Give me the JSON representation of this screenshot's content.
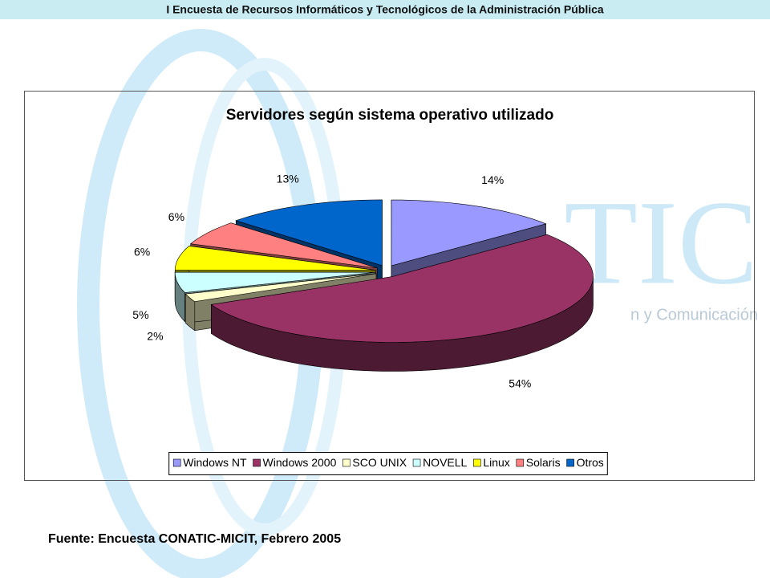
{
  "header": {
    "title": "I Encuesta de Recursos Informáticos y Tecnológicos de la Administración Pública"
  },
  "watermark": {
    "logo": "TIC",
    "tagline": "n y Comunicación"
  },
  "chart_data": {
    "type": "pie3d",
    "title": "Servidores según sistema operativo utilizado",
    "categories": [
      "Windows NT",
      "Windows 2000",
      "SCO UNIX",
      "NOVELL",
      "Linux",
      "Solaris",
      "Otros"
    ],
    "values": [
      14,
      54,
      2,
      5,
      6,
      6,
      13
    ],
    "value_labels": [
      "14%",
      "54%",
      "2%",
      "5%",
      "6%",
      "6%",
      "13%"
    ],
    "colors": [
      "#9999ff",
      "#993366",
      "#ffffcc",
      "#ccffff",
      "#ffff00",
      "#ff8080",
      "#0066cc"
    ],
    "legend": "bottom"
  },
  "footer": {
    "source": "Fuente: Encuesta CONATIC-MICIT, Febrero 2005"
  }
}
